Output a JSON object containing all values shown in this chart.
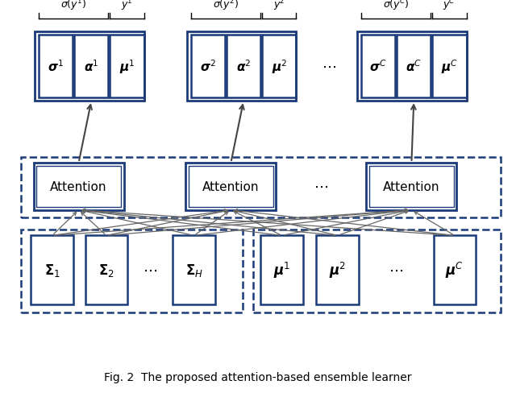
{
  "title": "Fig. 2  The proposed attention-based ensemble learner",
  "bg_color": "#ffffff",
  "border_color": "#1a3a7a",
  "dashed_color": "#1a3a7a",
  "arrow_color": "#666666",
  "text_color": "#000000",
  "figsize": [
    6.4,
    4.89
  ],
  "dpi": 100
}
